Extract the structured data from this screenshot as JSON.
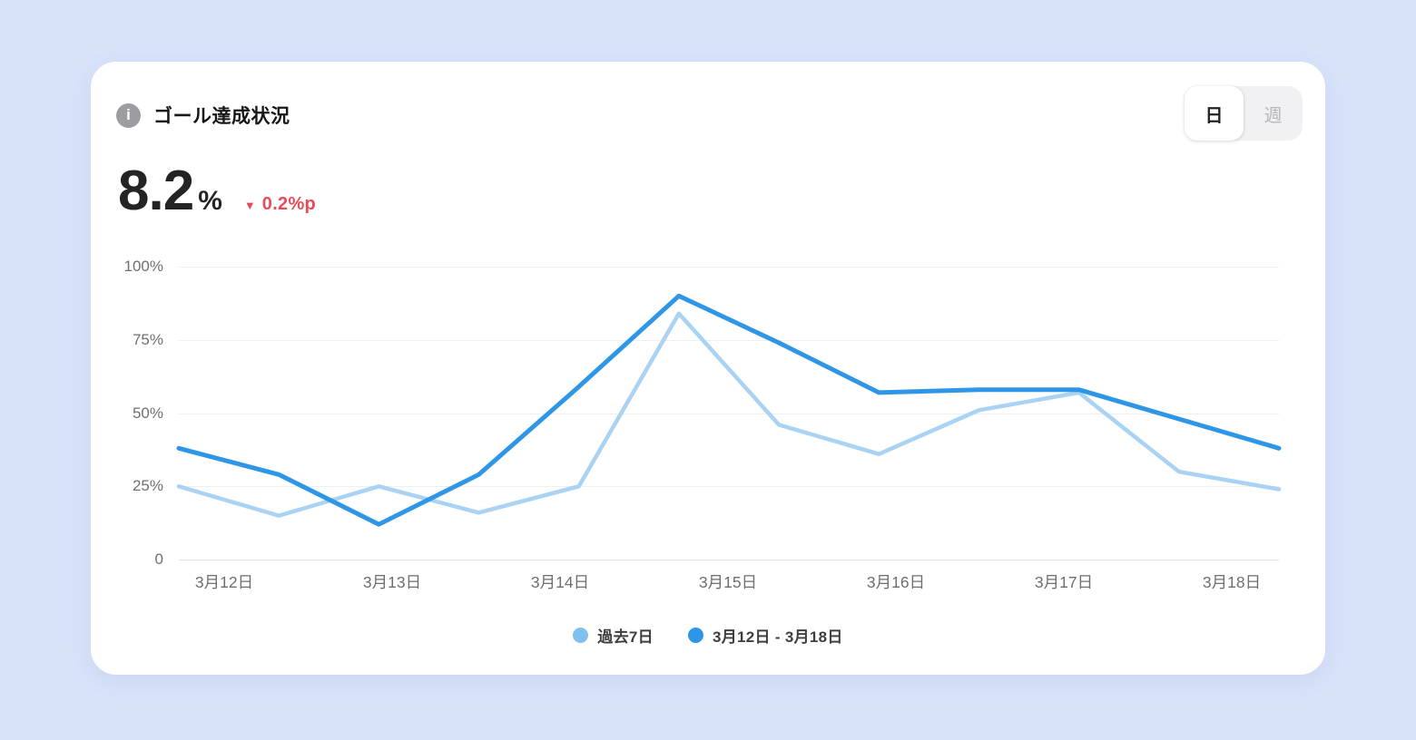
{
  "card": {
    "title": "ゴール達成状況"
  },
  "toggle": {
    "day_label": "日",
    "week_label": "週",
    "selected": "日"
  },
  "metric": {
    "value": "8.2",
    "unit": "%",
    "delta_arrow": "▼",
    "delta": "0.2%p",
    "delta_direction": "down"
  },
  "colors": {
    "page_background": "#d8e3fa",
    "card_background": "#ffffff",
    "series_dark_blue": "#2e96e7",
    "series_light_blue": "#a9d2f3",
    "legend_light_dot": "#7fc0ec",
    "delta_red": "#ea4b58",
    "axis_text_gray": "#707074",
    "grid_gray": "#efefef"
  },
  "chart_data": {
    "type": "line",
    "title": "ゴール達成状況",
    "x_axis_labels": [
      "3月12日",
      "3月13日",
      "3月14日",
      "3月15日",
      "3月16日",
      "3月17日",
      "3月18日"
    ],
    "y_axis_labels": [
      "100%",
      "75%",
      "50%",
      "25%",
      "0"
    ],
    "ylim": [
      0,
      100
    ],
    "y_gridlines": [
      0,
      25,
      50,
      75,
      100
    ],
    "grid": true,
    "legend_position": "bottom",
    "points_per_series": 12,
    "series": [
      {
        "name": "過去7日",
        "color": "#a9d2f3",
        "legend_dot_color": "#7fc0ec",
        "stroke_width": 4.5,
        "values": [
          25,
          15,
          25,
          16,
          25,
          84,
          46,
          36,
          51,
          57,
          30,
          24
        ]
      },
      {
        "name": "3月12日 - 3月18日",
        "color": "#2e96e7",
        "legend_dot_color": "#2e96e7",
        "stroke_width": 5,
        "values": [
          38,
          29,
          12,
          29,
          59,
          90,
          74,
          57,
          58,
          58,
          48,
          38
        ]
      }
    ]
  }
}
